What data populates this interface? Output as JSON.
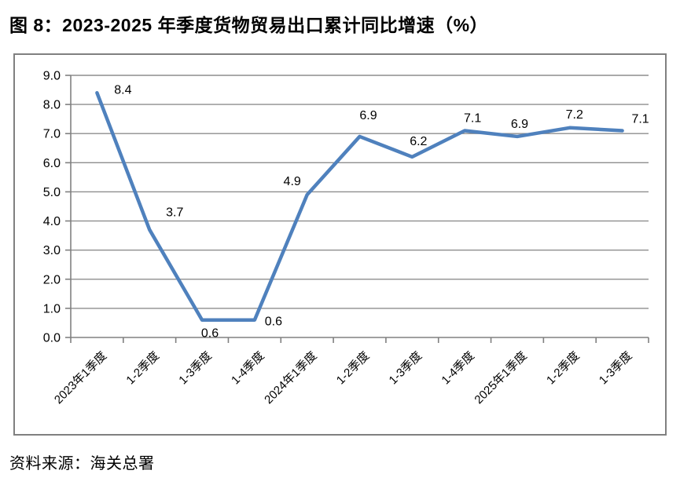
{
  "title": "图 8：2023-2025 年季度货物贸易出口累计同比增速（%）",
  "source": "资料来源：海关总署",
  "chart_data": {
    "type": "line",
    "title": "图 8：2023-2025 年季度货物贸易出口累计同比增速（%）",
    "categories": [
      "2023年1季度",
      "1-2季度",
      "1-3季度",
      "1-4季度",
      "2024年1季度",
      "1-2季度",
      "1-3季度",
      "1-4季度",
      "2025年1季度",
      "1-2季度",
      "1-3季度"
    ],
    "values": [
      8.4,
      3.7,
      0.6,
      0.6,
      4.9,
      6.9,
      6.2,
      7.1,
      6.9,
      7.2,
      7.1
    ],
    "data_labels": [
      "8.4",
      "3.7",
      "0.6",
      "0.6",
      "4.9",
      "6.9",
      "6.2",
      "7.1",
      "6.9",
      "7.2",
      "7.1"
    ],
    "ylim": [
      0.0,
      9.0
    ],
    "ytick_step": 1.0,
    "ytick_labels": [
      "0.0",
      "1.0",
      "2.0",
      "3.0",
      "4.0",
      "5.0",
      "6.0",
      "7.0",
      "8.0",
      "9.0"
    ],
    "xlabel": "",
    "ylabel": "",
    "grid": true,
    "legend": "none",
    "line_color": "#4F81BD",
    "grid_color": "#8E8E8E",
    "axis_color": "#808080",
    "label_color": "#000000"
  }
}
